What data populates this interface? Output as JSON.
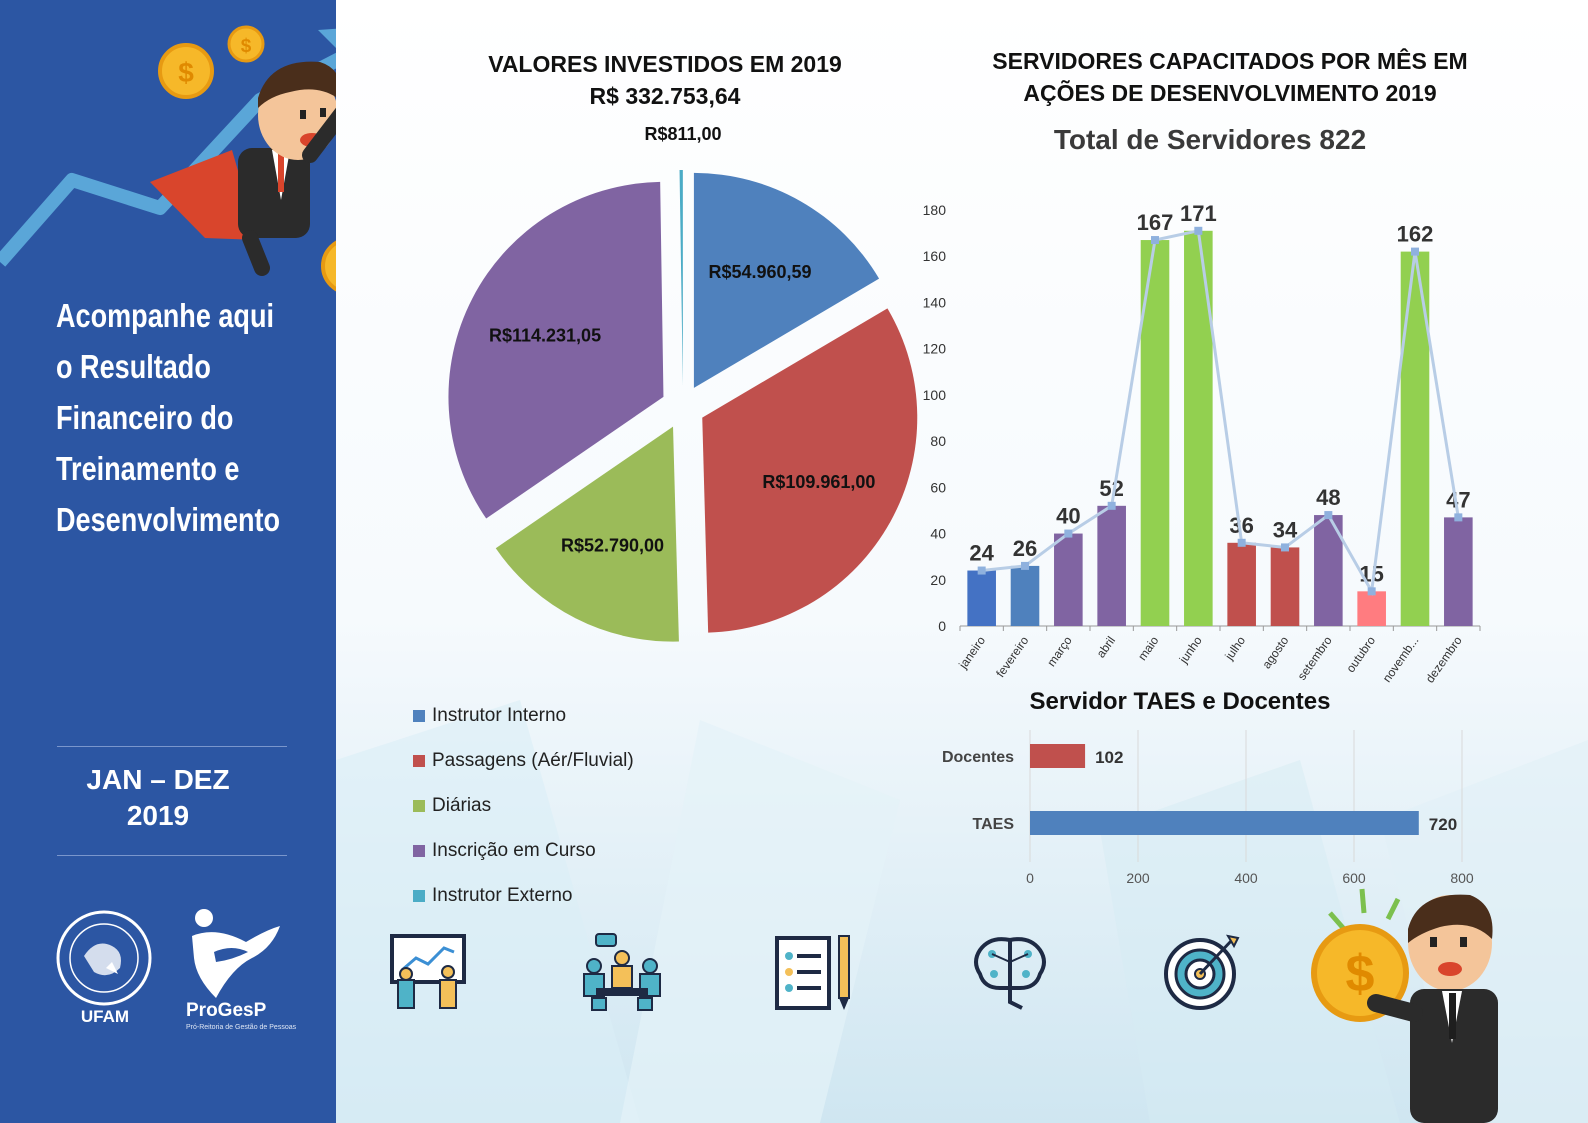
{
  "sidebar": {
    "headline": [
      "Acompanhe aqui",
      "o Resultado",
      "Financeiro do",
      "Treinamento e",
      "Desenvolvimento"
    ],
    "period": [
      "JAN – DEZ",
      "2019"
    ],
    "logos": {
      "ufam": "UFAM",
      "progesp": "ProGesP",
      "progesp_sub": "Pró-Reitoria de Gestão de Pessoas"
    }
  },
  "pie": {
    "title": [
      "VALORES INVESTIDOS EM 2019",
      "R$ 332.753,64"
    ],
    "legend": [
      "Instrutor Interno",
      "Passagens (Aér/Fluvial)",
      "Diárias",
      "Inscrição em Curso",
      "Instrutor Externo"
    ]
  },
  "bar": {
    "title": [
      "SERVIDORES CAPACITADOS POR MÊS EM",
      "AÇÕES DE DESENVOLVIMENTO 2019"
    ],
    "total_label": "Total de Servidores",
    "total_value": "822"
  },
  "hbar": {
    "title": "Servidor TAES e Docentes"
  },
  "icons": [
    "presentation-icon",
    "meeting-icon",
    "checklist-icon",
    "brain-circuit-icon",
    "target-icon",
    "businessman-coin-icon"
  ],
  "colors": {
    "sidebar": "#2c56a3",
    "blue": "#4a7ebd",
    "red": "#c0504d",
    "green": "#9bbb59",
    "purple": "#8064a2",
    "teal": "#4bacc6",
    "lightgreen": "#92d050",
    "salmon": "#ff7c80",
    "mono_blue": "#3f6fc4"
  },
  "chart_data": [
    {
      "type": "pie",
      "title": "VALORES INVESTIDOS EM 2019",
      "subtitle": "R$ 332.753,64",
      "categories": [
        "Instrutor Interno",
        "Passagens (Aér/Fluvial)",
        "Diárias",
        "Inscrição em Curso",
        "Instrutor Externo"
      ],
      "values": [
        54960.59,
        109961.0,
        52790.0,
        114231.05,
        811.0
      ],
      "labels": [
        "R$54.960,59",
        "R$109.961,00",
        "R$52.790,00",
        "R$114.231,05",
        "R$811,00"
      ],
      "colors": [
        "#4f81bd",
        "#c0504d",
        "#9bbb59",
        "#8064a2",
        "#4bacc6"
      ],
      "legend": "bottom-left"
    },
    {
      "type": "bar",
      "title": "SERVIDORES CAPACITADOS POR MÊS EM AÇÕES DE DESENVOLVIMENTO 2019",
      "categories": [
        "janeiro",
        "fevereiro",
        "março",
        "abril",
        "maio",
        "junho",
        "julho",
        "agosto",
        "setembro",
        "outubro",
        "novemb...",
        "dezembro"
      ],
      "values": [
        24,
        26,
        40,
        52,
        167,
        171,
        36,
        34,
        48,
        15,
        162,
        47
      ],
      "bar_colors": [
        "#4472c4",
        "#4f81bd",
        "#8064a2",
        "#8064a2",
        "#92d050",
        "#92d050",
        "#c0504d",
        "#c0504d",
        "#8064a2",
        "#ff7c80",
        "#92d050",
        "#8064a2"
      ],
      "overlay_line": true,
      "ylim": [
        0,
        180
      ],
      "yticks": [
        0,
        20,
        40,
        60,
        80,
        100,
        120,
        140,
        160,
        180
      ],
      "grid": false
    },
    {
      "type": "bar",
      "orientation": "horizontal",
      "title": "Servidor TAES e Docentes",
      "categories": [
        "Docentes",
        "TAES"
      ],
      "values": [
        102,
        720
      ],
      "bar_colors": [
        "#c0504d",
        "#4f81bd"
      ],
      "xlim": [
        0,
        800
      ],
      "xticks": [
        0,
        200,
        400,
        600,
        800
      ],
      "grid": true
    }
  ]
}
